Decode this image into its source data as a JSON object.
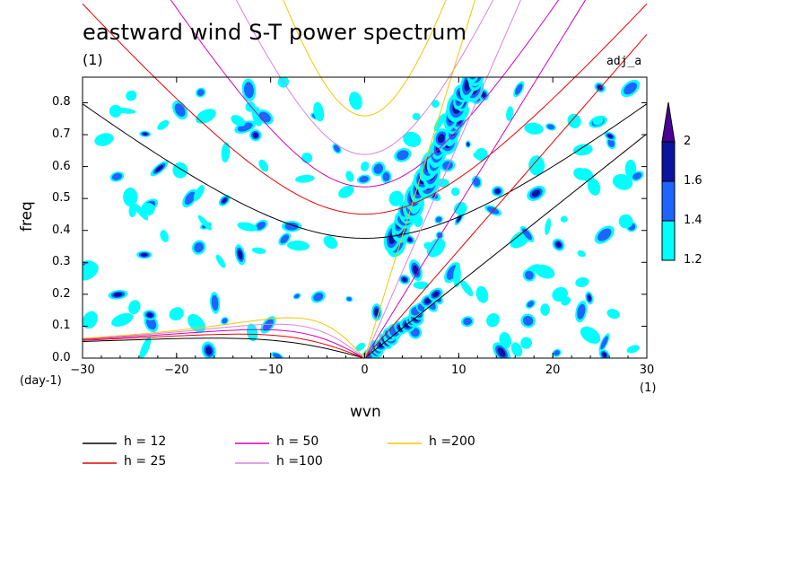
{
  "chart_data": {
    "type": "heatmap",
    "title": "eastward wind S-T power spectrum",
    "subtitle": "(1)",
    "tag": "adj_a",
    "xlabel": "wvn",
    "xunit": "(1)",
    "ylabel": "freq",
    "yunit": "(day-1)",
    "xlim": [
      -30,
      30
    ],
    "ylim": [
      0,
      0.88
    ],
    "x_ticks": [
      -30,
      -20,
      -10,
      0,
      10,
      20,
      30
    ],
    "x_tick_labels": [
      "−30",
      "−20",
      "−10",
      "0",
      "10",
      "20",
      "30"
    ],
    "y_ticks": [
      0,
      0.1,
      0.2,
      0.3,
      0.4,
      0.5,
      0.6,
      0.7,
      0.8
    ],
    "y_tick_labels": [
      "0.0",
      "0.1",
      "0.2",
      "0.3",
      "0.4",
      "0.5",
      "0.6",
      "0.7",
      "0.8"
    ],
    "colorbar": {
      "levels": [
        "1.2",
        "1.4",
        "1.6",
        "2"
      ],
      "colors": [
        "#00ffff",
        "#1e64ff",
        "#0a14a0",
        "#4b0096"
      ],
      "extend": "max"
    },
    "dispersion_curves": [
      {
        "name": "h = 12",
        "color": "#000000"
      },
      {
        "name": "h = 25",
        "color": "#e60000"
      },
      {
        "name": "h = 50",
        "color": "#d200be"
      },
      {
        "name": "h =100",
        "color": "#dc82dc"
      },
      {
        "name": "h =200",
        "color": "#f0c800"
      }
    ],
    "kelvin_band": {
      "k_start": 3,
      "k_end": 12,
      "note": "strong power along Kelvin-wave branch"
    }
  }
}
